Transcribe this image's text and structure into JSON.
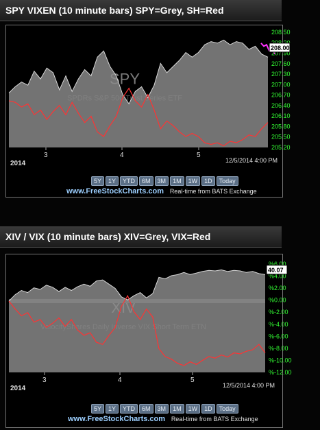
{
  "panels": [
    {
      "title": "SPY VIXEN (10 minute bars) SPY=Grey, SH=Red",
      "watermark": "SPY",
      "watermark_sub": "SPDRs S&P 500 Trust Series ETF",
      "year": "2014",
      "timestamp": "12/5/2014 4:00 PM",
      "last_value": "208.00",
      "range_buttons": [
        "5Y",
        "1Y",
        "YTD",
        "6M",
        "3M",
        "1M",
        "1W",
        "1D",
        "Today"
      ],
      "site": "www.FreeStockCharts.com",
      "source": "Real-time from BATS Exchange"
    },
    {
      "title": "XIV / VIX (10 minute bars) XIV=Grey, VIX=Red",
      "watermark": "XIV",
      "watermark_sub": "VelocityShares Daily Inverse VIX Short Term ETN",
      "year": "2014",
      "timestamp": "12/5/2014 4:00 PM",
      "last_value": "40.07",
      "range_buttons": [
        "5Y",
        "1Y",
        "YTD",
        "6M",
        "3M",
        "1M",
        "1W",
        "1D",
        "Today"
      ],
      "site": "www.FreeStockCharts.com",
      "source": "Real-time from BATS Exchange"
    }
  ],
  "chart_data": [
    {
      "type": "area",
      "title": "SPY VIXEN (10 minute bars) SPY=Grey, SH=Red",
      "x_ticks": [
        "3",
        "4",
        "5"
      ],
      "y_ticks": [
        "208.50",
        "208.20",
        "207.90",
        "207.60",
        "207.30",
        "207.00",
        "206.70",
        "206.40",
        "206.10",
        "205.80",
        "205.50",
        "205.20"
      ],
      "ylim": [
        205.0,
        208.7
      ],
      "axis_color": "#33ff33",
      "series": [
        {
          "name": "SPY",
          "kind": "area",
          "color": "#8c8c8c",
          "values": [
            206.75,
            206.95,
            207.1,
            207.0,
            207.45,
            207.2,
            207.55,
            207.4,
            206.85,
            207.3,
            206.8,
            207.2,
            207.5,
            207.3,
            207.9,
            208.1,
            207.6,
            207.3,
            206.7,
            206.4,
            206.8,
            206.95,
            206.6,
            207.0,
            207.7,
            207.4,
            207.6,
            207.8,
            208.05,
            207.9,
            208.05,
            208.3,
            208.4,
            208.35,
            208.45,
            208.3,
            208.4,
            208.35,
            208.15,
            208.25,
            208.0,
            207.9
          ]
        },
        {
          "name": "SH",
          "kind": "line",
          "color": "#ff3333",
          "values": [
            206.5,
            206.45,
            206.3,
            206.4,
            206.05,
            206.2,
            205.9,
            206.15,
            206.35,
            206.05,
            206.45,
            206.1,
            205.8,
            206.0,
            205.5,
            205.35,
            205.7,
            206.0,
            206.6,
            206.9,
            206.5,
            206.3,
            206.7,
            206.2,
            205.6,
            205.85,
            205.7,
            205.5,
            205.35,
            205.45,
            205.35,
            205.15,
            205.1,
            205.15,
            205.05,
            205.2,
            205.15,
            205.25,
            205.4,
            205.35,
            205.6,
            205.8
          ]
        },
        {
          "name": "SPY close",
          "kind": "line",
          "color": "#ff33ff",
          "values": [
            208.35,
            208.25,
            208.3,
            208.1,
            208.15,
            208.0
          ]
        }
      ]
    },
    {
      "type": "area",
      "title": "XIV / VIX (10 minute bars) XIV=Grey, VIX=Red",
      "x_ticks": [
        "3",
        "4",
        "5"
      ],
      "y_ticks": [
        "%6.00",
        "%4.00",
        "%2.00",
        "%0.00",
        "%-2.00",
        "%-4.00",
        "%-6.00",
        "%-8.00",
        "%-10.00",
        "%-12.00"
      ],
      "ylim": [
        -13.5,
        7.0
      ],
      "axis_color": "#33ff33",
      "series": [
        {
          "name": "XIV",
          "kind": "area",
          "color": "#8c8c8c",
          "values": [
            0.0,
            1.2,
            2.0,
            1.6,
            2.5,
            2.2,
            3.0,
            2.6,
            1.8,
            2.6,
            2.0,
            2.7,
            3.2,
            2.8,
            3.8,
            4.0,
            3.2,
            2.4,
            0.8,
            0.2,
            1.0,
            1.6,
            0.6,
            1.4,
            4.5,
            4.2,
            4.8,
            5.0,
            5.4,
            5.0,
            5.3,
            5.6,
            5.8,
            5.7,
            5.9,
            5.6,
            5.8,
            5.7,
            5.4,
            5.6,
            5.2,
            5.0
          ]
        },
        {
          "name": "VIX",
          "kind": "line",
          "color": "#ff3333",
          "values": [
            0.0,
            -1.5,
            -2.8,
            -2.2,
            -4.0,
            -3.5,
            -5.0,
            -4.2,
            -3.2,
            -4.8,
            -3.5,
            -5.5,
            -6.5,
            -6.0,
            -7.8,
            -8.2,
            -6.5,
            -5.0,
            -1.0,
            1.0,
            -2.0,
            -3.5,
            -1.5,
            -3.0,
            -9.0,
            -10.5,
            -11.0,
            -11.8,
            -12.2,
            -11.5,
            -12.0,
            -11.2,
            -10.5,
            -10.8,
            -10.2,
            -10.6,
            -9.8,
            -10.0,
            -9.5,
            -9.2,
            -8.2,
            -9.8
          ]
        }
      ]
    }
  ]
}
